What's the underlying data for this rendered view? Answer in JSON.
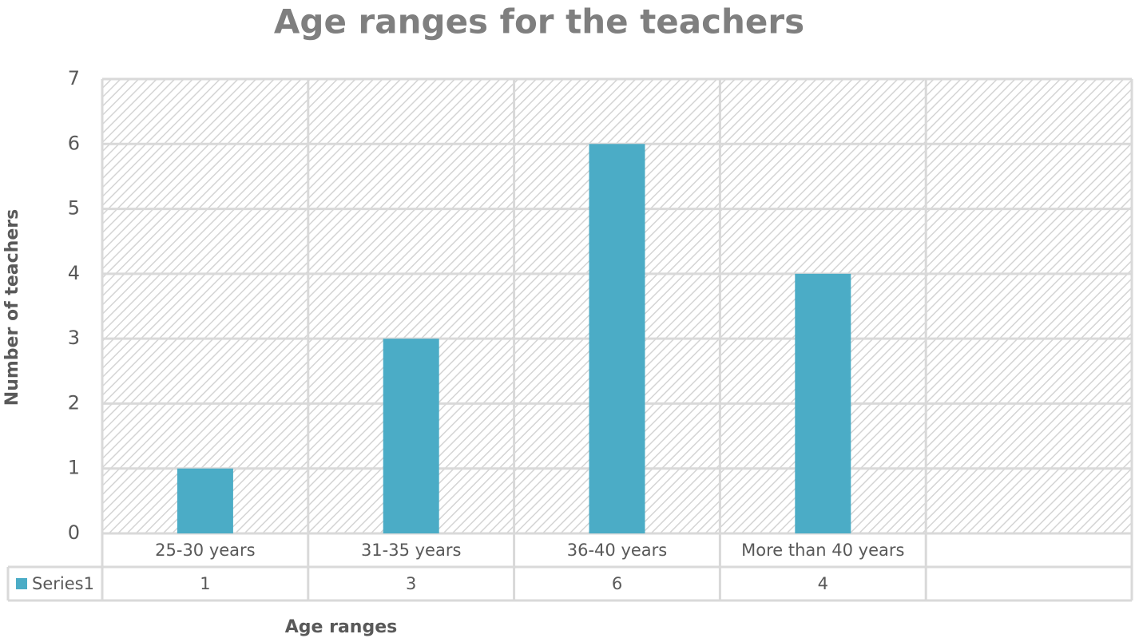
{
  "chart_data": {
    "type": "bar",
    "title": "Age ranges for the teachers",
    "x_label": "Age ranges",
    "y_label": "Number of teachers",
    "categories": [
      "25-30 years",
      "31-35 years",
      "36-40 years",
      "More than 40 years",
      null
    ],
    "series": [
      {
        "name": "Series1",
        "color": "#4bacc6",
        "values": [
          1,
          3,
          6,
          4,
          null
        ]
      }
    ],
    "ylim": [
      0,
      7
    ],
    "yticks": [
      0,
      1,
      2,
      3,
      4,
      5,
      6,
      7
    ],
    "grid": true
  }
}
